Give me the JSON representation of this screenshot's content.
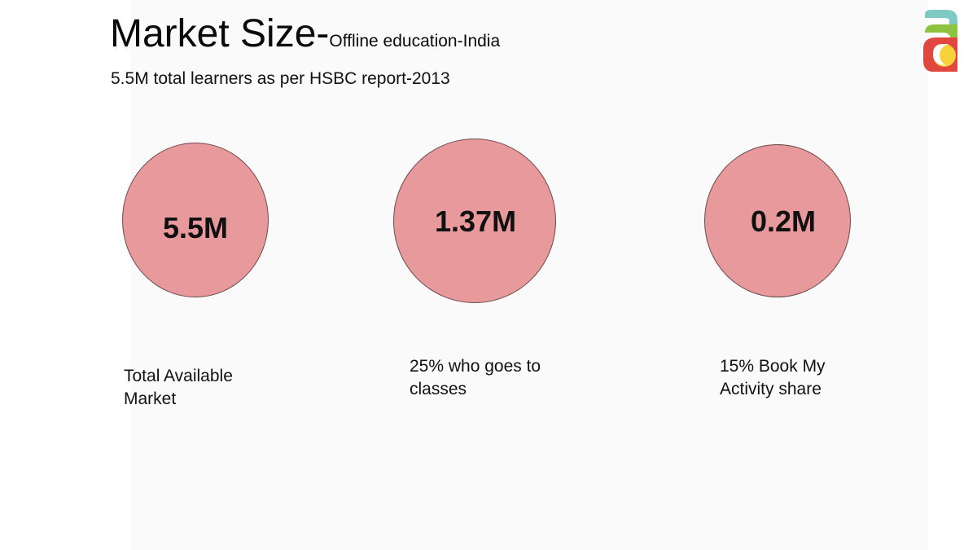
{
  "slide": {
    "title_main": "Market Size-",
    "title_sub": "Offline education-India",
    "subtitle": "5.5M total learners as per HSBC report-2013"
  },
  "circles": [
    {
      "value": "5.5M",
      "caption_lines": [
        "Total Available",
        "Market"
      ]
    },
    {
      "value": "1.37M",
      "caption_lines": [
        "25% who goes to",
        "classes"
      ]
    },
    {
      "value": "0.2M",
      "caption_lines": [
        "15% Book My",
        "Activity share"
      ]
    }
  ],
  "colors": {
    "circle_fill": "#e8999b",
    "circle_stroke": "#6b4b4b",
    "logo_teal": "#7fc8c4",
    "logo_green": "#8ec33f",
    "logo_yellow": "#f7d23b",
    "logo_red": "#e0473f"
  },
  "logo": {
    "icon": "brand-logo-a-icon"
  }
}
